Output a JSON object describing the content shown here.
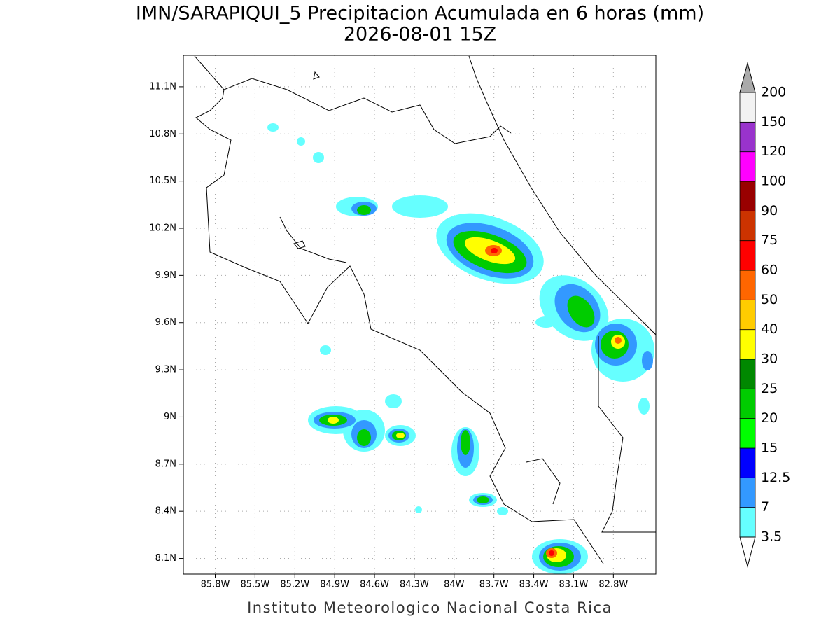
{
  "title": "IMN/SARAPIQUI_5 Precipitacion Acumulada en 6 horas (mm)",
  "subtitle": "2026-08-01 15Z",
  "map": {
    "lon_lim": [
      -86.04,
      -82.48
    ],
    "lat_lim": [
      8.0,
      11.3
    ],
    "lon_ticks": [
      {
        "value": -85.8,
        "label": "85.8W"
      },
      {
        "value": -85.5,
        "label": "85.5W"
      },
      {
        "value": -85.2,
        "label": "85.2W"
      },
      {
        "value": -84.9,
        "label": "84.9W"
      },
      {
        "value": -84.6,
        "label": "84.6W"
      },
      {
        "value": -84.3,
        "label": "84.3W"
      },
      {
        "value": -84.0,
        "label": "84W"
      },
      {
        "value": -83.7,
        "label": "83.7W"
      },
      {
        "value": -83.4,
        "label": "83.4W"
      },
      {
        "value": -83.1,
        "label": "83.1W"
      },
      {
        "value": -82.8,
        "label": "82.8W"
      }
    ],
    "lat_ticks": [
      {
        "value": 11.1,
        "label": "11.1N"
      },
      {
        "value": 10.8,
        "label": "10.8N"
      },
      {
        "value": 10.5,
        "label": "10.5N"
      },
      {
        "value": 10.2,
        "label": "10.2N"
      },
      {
        "value": 9.9,
        "label": "9.9N"
      },
      {
        "value": 9.6,
        "label": "9.6N"
      },
      {
        "value": 9.3,
        "label": "9.3N"
      },
      {
        "value": 9.0,
        "label": "9N"
      },
      {
        "value": 8.7,
        "label": "8.7N"
      },
      {
        "value": 8.4,
        "label": "8.4N"
      },
      {
        "value": 8.1,
        "label": "8.1N"
      }
    ]
  },
  "colorbar": {
    "levels": [
      3.5,
      7,
      12.5,
      15,
      20,
      25,
      30,
      40,
      50,
      60,
      75,
      90,
      100,
      120,
      150,
      200
    ],
    "colors": [
      "#66ffff",
      "#3399ff",
      "#0000ff",
      "#00ff00",
      "#00cc00",
      "#008800",
      "#ffff00",
      "#ffcc00",
      "#ff6600",
      "#ff0000",
      "#cc3300",
      "#990000",
      "#ff00ff",
      "#9933cc",
      "#f2f2f2"
    ],
    "under_color": "#ffffff",
    "over_color": "#aaaaaa"
  },
  "footer": "Instituto Meteorologico Nacional Costa Rica"
}
